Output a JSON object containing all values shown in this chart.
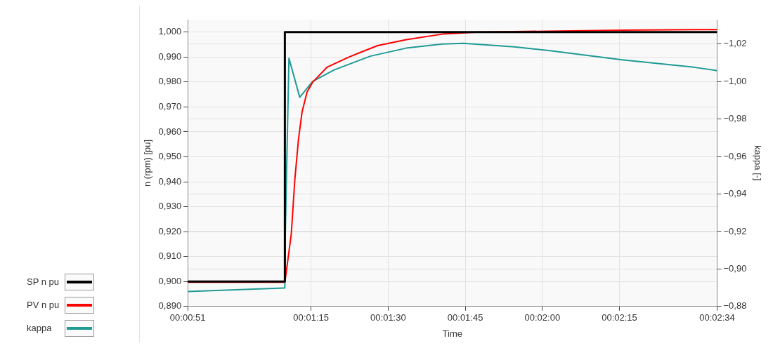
{
  "chart_data": {
    "type": "line",
    "xlabel": "Time",
    "ylabel": "n (rpm) [pu]",
    "y2label": "kappa [-]",
    "xlim": [
      0.014167,
      0.042778
    ],
    "xticks": [
      {
        "value": 0.014167,
        "label": "00:00:51"
      },
      {
        "value": 0.020833,
        "label": "00:01:15"
      },
      {
        "value": 0.025,
        "label": "00:01:30"
      },
      {
        "value": 0.029167,
        "label": "00:01:45"
      },
      {
        "value": 0.033333,
        "label": "00:02:00"
      },
      {
        "value": 0.0375,
        "label": "00:02:15"
      },
      {
        "value": 0.042778,
        "label": "00:02:34"
      }
    ],
    "ylim": [
      0.89,
      1.005
    ],
    "yticks": [
      {
        "value": 0.89,
        "label": "0,890"
      },
      {
        "value": 0.9,
        "label": "0,900"
      },
      {
        "value": 0.91,
        "label": "0,910"
      },
      {
        "value": 0.92,
        "label": "0,920"
      },
      {
        "value": 0.93,
        "label": "0,930"
      },
      {
        "value": 0.94,
        "label": "0,940"
      },
      {
        "value": 0.95,
        "label": "0,950"
      },
      {
        "value": 0.96,
        "label": "0,960"
      },
      {
        "value": 0.97,
        "label": "0,970"
      },
      {
        "value": 0.98,
        "label": "0,980"
      },
      {
        "value": 0.99,
        "label": "0,990"
      },
      {
        "value": 1.0,
        "label": "1,000"
      }
    ],
    "y2lim": [
      -0.88,
      -1.033
    ],
    "y2ticks": [
      {
        "value": -0.88,
        "label": "−0,88"
      },
      {
        "value": -0.9,
        "label": "−0,90"
      },
      {
        "value": -0.92,
        "label": "−0,92"
      },
      {
        "value": -0.94,
        "label": "−0,94"
      },
      {
        "value": -0.96,
        "label": "−0,96"
      },
      {
        "value": -0.98,
        "label": "−0,98"
      },
      {
        "value": -1.0,
        "label": "−1,00"
      },
      {
        "value": -1.02,
        "label": "−1,02"
      }
    ],
    "grid": true,
    "legend": "bottom left",
    "marker": "none",
    "series": [
      {
        "name": "SP n pu",
        "type": "step",
        "color": "#000000",
        "x": [
          0.014167,
          0.019417,
          0.042778
        ],
        "values": [
          0.9,
          1.0,
          1.0
        ]
      },
      {
        "name": "PV n pu",
        "color": "#ff0000",
        "x": [
          0.014167,
          0.019375,
          0.019444,
          0.019764,
          0.019958,
          0.020153,
          0.020347,
          0.02062,
          0.020931,
          0.021708,
          0.022875,
          0.024428,
          0.025983,
          0.027928,
          0.029869,
          0.037644,
          0.041533,
          0.042778
        ],
        "values": [
          0.8997,
          0.8997,
          0.901,
          0.919,
          0.941,
          0.957,
          0.968,
          0.976,
          0.98,
          0.986,
          0.99,
          0.9946,
          0.997,
          0.9992,
          1.0,
          1.0008,
          1.001,
          1.001
        ]
      },
      {
        "name": "kappa",
        "axis": "y2",
        "color": "#1f9a94",
        "x": [
          0.014167,
          0.019375,
          0.019417,
          0.019444,
          0.019639,
          0.020222,
          0.020917,
          0.022083,
          0.024028,
          0.025972,
          0.027917,
          0.029083,
          0.031806,
          0.03375,
          0.037639,
          0.041528,
          0.042778
        ],
        "values": [
          -0.888,
          -0.8898,
          -0.8898,
          -0.92,
          -1.0124,
          -0.9916,
          -1.0,
          -1.0062,
          -1.0135,
          -1.0178,
          -1.02,
          -1.0204,
          -1.0185,
          -1.0164,
          -1.0116,
          -1.0076,
          -1.0058
        ]
      }
    ]
  }
}
